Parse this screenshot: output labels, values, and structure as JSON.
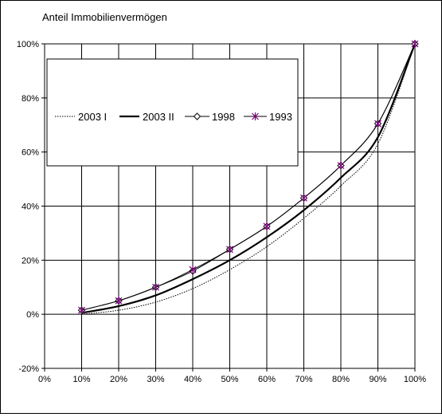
{
  "chart_data": {
    "type": "line",
    "title": "",
    "ylabel": "Anteil Immobilienvermögen",
    "xlabel": "",
    "x": [
      10,
      20,
      30,
      40,
      50,
      60,
      70,
      80,
      90,
      100
    ],
    "xlim": [
      0,
      100
    ],
    "ylim": [
      -20,
      100
    ],
    "x_ticks": [
      "0%",
      "10%",
      "20%",
      "30%",
      "40%",
      "50%",
      "60%",
      "70%",
      "80%",
      "90%",
      "100%"
    ],
    "y_ticks": [
      "-20%",
      "0%",
      "20%",
      "40%",
      "60%",
      "80%",
      "100%"
    ],
    "grid": true,
    "legend_position": "upper-left",
    "series": [
      {
        "name": "2003 I",
        "values": [
          0,
          1.5,
          4.5,
          9.5,
          16.5,
          25,
          35.5,
          47.5,
          63,
          100
        ],
        "style": "dotted",
        "color": "#000000"
      },
      {
        "name": "2003 II",
        "values": [
          0.5,
          3,
          7,
          13,
          20,
          28.5,
          38.5,
          50.5,
          65.5,
          100
        ],
        "style": "thick",
        "color": "#000000"
      },
      {
        "name": "1998",
        "values": [
          1.5,
          5,
          10,
          16,
          24,
          32.5,
          43,
          55,
          70.5,
          100
        ],
        "style": "diamond",
        "color": "#000000"
      },
      {
        "name": "1993",
        "values": [
          1.5,
          5,
          10,
          16.5,
          24,
          32.5,
          43,
          55,
          70.5,
          100
        ],
        "style": "star",
        "color": "#800080"
      }
    ]
  }
}
